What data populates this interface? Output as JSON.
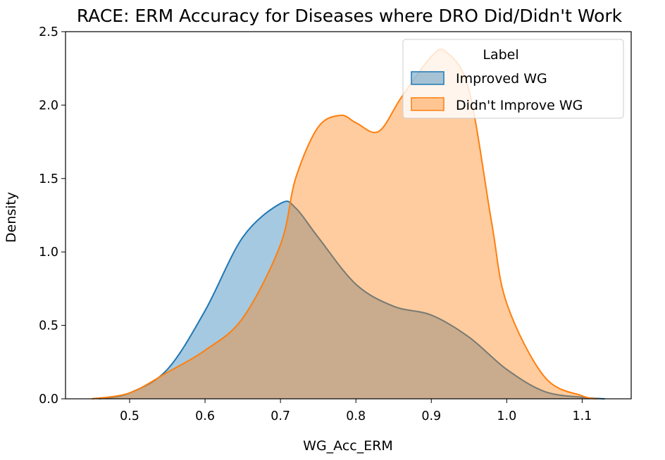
{
  "chart_data": {
    "type": "area",
    "title": "RACE: ERM Accuracy for Diseases where DRO Did/Didn't Work",
    "xlabel": "WG_Acc_ERM",
    "ylabel": "Density",
    "xlim": [
      0.415,
      1.165
    ],
    "ylim": [
      0,
      2.5
    ],
    "xticks": [
      0.5,
      0.6,
      0.7,
      0.8,
      0.9,
      1.0,
      1.1
    ],
    "xtick_labels": [
      "0.5",
      "0.6",
      "0.7",
      "0.8",
      "0.9",
      "1.0",
      "1.1"
    ],
    "yticks": [
      0.0,
      0.5,
      1.0,
      1.5,
      2.0,
      2.5
    ],
    "ytick_labels": [
      "0.0",
      "0.5",
      "1.0",
      "1.5",
      "2.0",
      "2.5"
    ],
    "grid": false,
    "legend": {
      "title": "Label",
      "placement": "top-right"
    },
    "series": [
      {
        "name": "Improved WG",
        "color": "#1f77b4",
        "x": [
          0.46,
          0.5,
          0.55,
          0.6,
          0.65,
          0.7,
          0.72,
          0.75,
          0.8,
          0.85,
          0.9,
          0.95,
          1.0,
          1.05,
          1.1,
          1.13
        ],
        "y": [
          0.0,
          0.04,
          0.2,
          0.6,
          1.1,
          1.33,
          1.3,
          1.1,
          0.78,
          0.63,
          0.57,
          0.42,
          0.2,
          0.05,
          0.01,
          0.0
        ]
      },
      {
        "name": "Didn't Improve WG",
        "color": "#ff7f0e",
        "x": [
          0.45,
          0.5,
          0.55,
          0.6,
          0.65,
          0.7,
          0.72,
          0.75,
          0.78,
          0.8,
          0.83,
          0.86,
          0.9,
          0.92,
          0.95,
          0.98,
          1.0,
          1.05,
          1.1,
          1.12
        ],
        "y": [
          0.0,
          0.04,
          0.18,
          0.33,
          0.55,
          1.05,
          1.5,
          1.85,
          1.93,
          1.88,
          1.82,
          2.05,
          2.33,
          2.36,
          2.1,
          1.2,
          0.65,
          0.15,
          0.02,
          0.0
        ]
      }
    ]
  }
}
